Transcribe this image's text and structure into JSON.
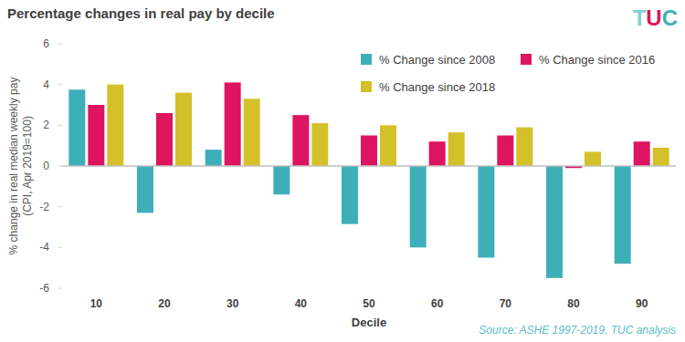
{
  "chart_data": {
    "type": "bar",
    "title": "Percentage changes in real pay by decile",
    "x_label": "Decile",
    "y_label": "% change in real median weekly pay (CPI, Apr 2019=100)",
    "annotations": [
      "Source: ASHE 1997-2019, TUC analysis",
      "TUC"
    ],
    "categories": [
      "10",
      "20",
      "30",
      "40",
      "50",
      "60",
      "70",
      "80",
      "90"
    ],
    "series": [
      {
        "name": "% Change since 2008",
        "color": "#3eafb8",
        "values": [
          3.75,
          -2.3,
          0.8,
          -1.4,
          -2.85,
          -4.0,
          -4.5,
          -5.5,
          -4.8
        ]
      },
      {
        "name": "% Change since 2016",
        "color": "#de1460",
        "values": [
          3.0,
          2.6,
          4.1,
          2.5,
          1.5,
          1.2,
          1.5,
          -0.1,
          1.2
        ]
      },
      {
        "name": "% Change since 2018",
        "color": "#d4c129",
        "values": [
          4.0,
          3.6,
          3.3,
          2.1,
          2.0,
          1.65,
          1.9,
          0.7,
          0.9
        ]
      }
    ],
    "ylim": [
      -6,
      6
    ],
    "yticks": [
      -6,
      -4,
      -2,
      0,
      2,
      4,
      6
    ],
    "grid": false,
    "legend": "top-right"
  }
}
